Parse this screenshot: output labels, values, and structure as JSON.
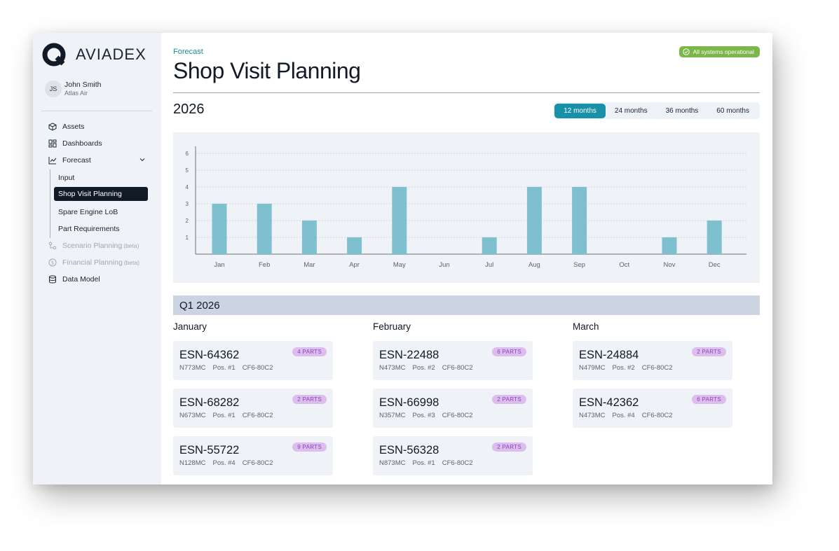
{
  "app": {
    "name": "AVIADEX"
  },
  "user": {
    "initials": "JS",
    "name": "John Smith",
    "org": "Atlas Air"
  },
  "sidebar": {
    "items": [
      {
        "label": "Assets",
        "icon": "cube-icon"
      },
      {
        "label": "Dashboards",
        "icon": "dashboard-grid-icon"
      },
      {
        "label": "Forecast",
        "icon": "line-chart-icon"
      },
      {
        "label": "Scenario Planning",
        "beta": "(beta)",
        "icon": "scenario-icon"
      },
      {
        "label": "Financial Planning",
        "beta": "(beta)",
        "icon": "dollar-circle-icon"
      },
      {
        "label": "Data Model",
        "icon": "database-icon"
      }
    ],
    "forecast_sub": [
      {
        "label": "Input"
      },
      {
        "label": "Shop Visit Planning"
      },
      {
        "label": "Spare Engine LoB"
      },
      {
        "label": "Part Requirements"
      }
    ]
  },
  "header": {
    "breadcrumb": "Forecast",
    "title": "Shop Visit Planning",
    "status": "All systems operational",
    "status_color": "#7ab648"
  },
  "year": "2026",
  "ranges": [
    {
      "label": "12 months",
      "active": true
    },
    {
      "label": "24 months",
      "active": false
    },
    {
      "label": "36 months",
      "active": false
    },
    {
      "label": "60 months",
      "active": false
    }
  ],
  "chart_data": {
    "type": "bar",
    "categories": [
      "Jan",
      "Feb",
      "Mar",
      "Apr",
      "May",
      "Jun",
      "Jul",
      "Aug",
      "Sep",
      "Oct",
      "Nov",
      "Dec"
    ],
    "values": [
      3,
      3,
      2,
      1,
      4,
      0,
      1,
      4,
      4,
      0,
      1,
      2
    ],
    "yticks": [
      1,
      2,
      3,
      4,
      5,
      6
    ],
    "ylim": [
      0,
      6
    ],
    "grid": true,
    "bar_color": "#7ec0cf"
  },
  "quarter": {
    "title": "Q1 2026",
    "months": [
      {
        "name": "January",
        "cards": [
          {
            "esn": "ESN-64362",
            "parts": "4 PARTS",
            "tail": "N773MC",
            "pos": "Pos. #1",
            "engine": "CF6-80C2"
          },
          {
            "esn": "ESN-68282",
            "parts": "2 PARTS",
            "tail": "N673MC",
            "pos": "Pos. #1",
            "engine": "CF6-80C2"
          },
          {
            "esn": "ESN-55722",
            "parts": "9 PARTS",
            "tail": "N128MC",
            "pos": "Pos. #4",
            "engine": "CF6-80C2"
          }
        ]
      },
      {
        "name": "February",
        "cards": [
          {
            "esn": "ESN-22488",
            "parts": "6 PARTS",
            "tail": "N473MC",
            "pos": "Pos. #2",
            "engine": "CF6-80C2"
          },
          {
            "esn": "ESN-66998",
            "parts": "2 PARTS",
            "tail": "N357MC",
            "pos": "Pos. #3",
            "engine": "CF6-80C2"
          },
          {
            "esn": "ESN-56328",
            "parts": "2 PARTS",
            "tail": "N873MC",
            "pos": "Pos. #1",
            "engine": "CF6-80C2"
          }
        ]
      },
      {
        "name": "March",
        "cards": [
          {
            "esn": "ESN-24884",
            "parts": "2 PARTS",
            "tail": "N479MC",
            "pos": "Pos. #2",
            "engine": "CF6-80C2"
          },
          {
            "esn": "ESN-42362",
            "parts": "6 PARTS",
            "tail": "N473MC",
            "pos": "Pos. #4",
            "engine": "CF6-80C2"
          }
        ]
      }
    ]
  }
}
